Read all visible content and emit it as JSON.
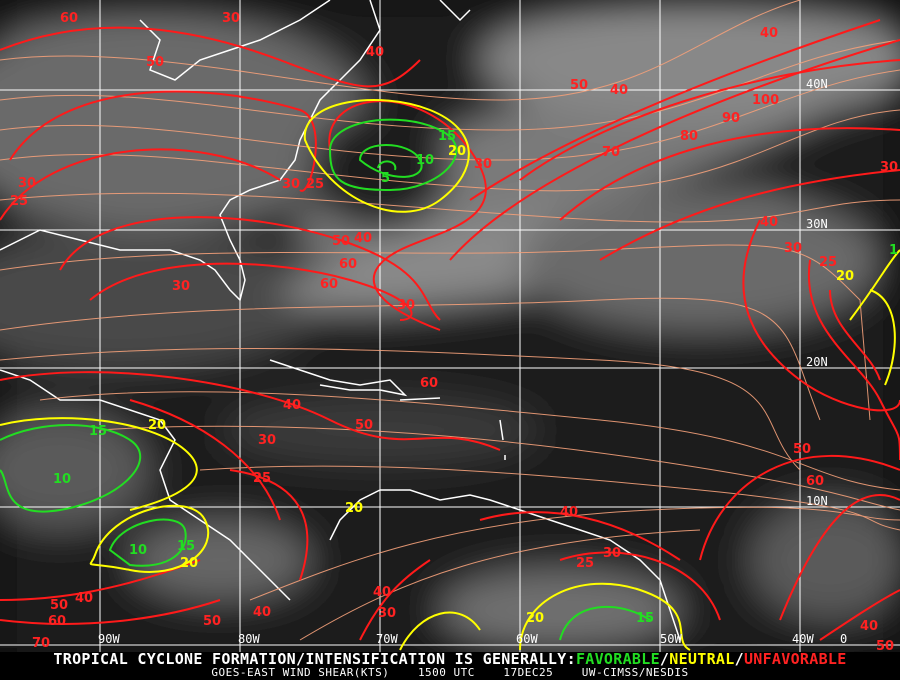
{
  "map": {
    "grid": {
      "longitudes": [
        "90W",
        "80W",
        "70W",
        "60W",
        "50W",
        "40W"
      ],
      "latitudes": [
        "40N",
        "30N",
        "20N",
        "10N",
        "0"
      ]
    },
    "colors": {
      "favorable": "#22dd22",
      "neutral": "#ffff00",
      "unfavorable": "#ff2222",
      "streamline": "#f4a07a",
      "coast": "#ffffff"
    },
    "contour_labels": {
      "red": [
        "60",
        "30",
        "50",
        "40",
        "50",
        "40",
        "40",
        "100",
        "90",
        "80",
        "70",
        "30",
        "30",
        "30",
        "25",
        "30",
        "25",
        "50",
        "40",
        "60",
        "60",
        "30",
        "30",
        "40",
        "30",
        "25",
        "60",
        "40",
        "50",
        "30",
        "25",
        "50",
        "60",
        "40",
        "30",
        "25",
        "40",
        "30",
        "50",
        "40",
        "60",
        "50",
        "40",
        "70",
        "40",
        "50"
      ],
      "yellow": [
        "20",
        "20",
        "20",
        "20",
        "20",
        "20"
      ],
      "green": [
        "15",
        "10",
        "5",
        "15",
        "10",
        "10",
        "15",
        "15",
        "1"
      ]
    }
  },
  "footer": {
    "line1_prefix": "TROPICAL CYCLONE FORMATION/INTENSIFICATION IS GENERALLY:",
    "favorable": "FAVORABLE",
    "sep": "/",
    "neutral": "NEUTRAL",
    "unfavorable": "UNFAVORABLE",
    "product": "GOES-EAST WIND SHEAR(KTS)",
    "time": "1500 UTC",
    "date": "17DEC25",
    "source": "UW-CIMSS/NESDIS"
  }
}
